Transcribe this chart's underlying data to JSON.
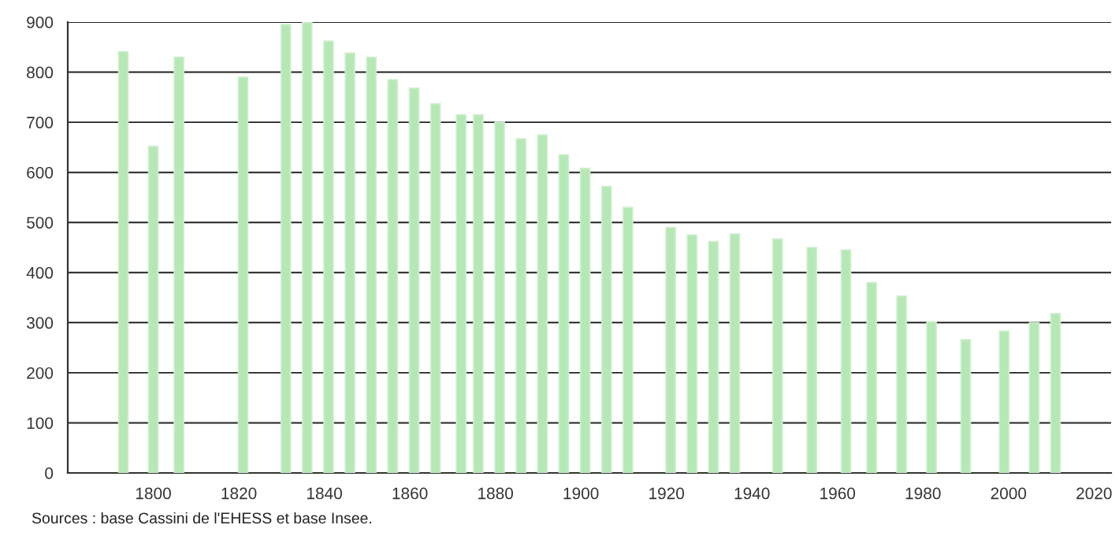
{
  "chart_data": {
    "type": "bar",
    "x": [
      1793,
      1800,
      1806,
      1821,
      1831,
      1836,
      1841,
      1846,
      1851,
      1856,
      1861,
      1866,
      1872,
      1876,
      1881,
      1886,
      1891,
      1896,
      1901,
      1906,
      1911,
      1921,
      1926,
      1931,
      1936,
      1946,
      1954,
      1962,
      1968,
      1975,
      1982,
      1990,
      1999,
      2006,
      2011
    ],
    "values": [
      841,
      652,
      830,
      790,
      895,
      900,
      862,
      838,
      830,
      785,
      768,
      737,
      715,
      715,
      700,
      667,
      675,
      635,
      608,
      572,
      530,
      490,
      475,
      462,
      477,
      467,
      450,
      445,
      380,
      353,
      302,
      266,
      283,
      300,
      318
    ],
    "color": "#b5e8b5",
    "xlim": [
      1780,
      2024
    ],
    "xticks": [
      1800,
      1820,
      1840,
      1860,
      1880,
      1900,
      1920,
      1940,
      1960,
      1980,
      2000,
      2020
    ],
    "ylim": [
      0,
      900
    ],
    "yticks": [
      0,
      100,
      200,
      300,
      400,
      500,
      600,
      700,
      800,
      900
    ],
    "grid": "y",
    "annotations": [
      "Sources : base Cassini de l'EHESS et base Insee."
    ]
  }
}
